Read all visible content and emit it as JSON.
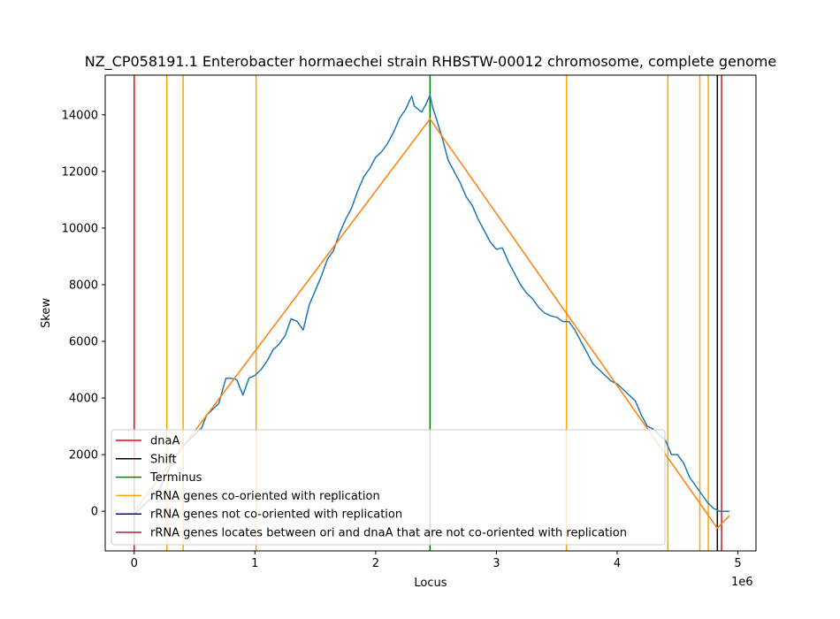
{
  "chart_data": {
    "type": "line",
    "title": "NZ_CP058191.1 Enterobacter hormaechei strain RHBSTW-00012 chromosome, complete genome",
    "xlabel": "Locus",
    "ylabel": "Skew",
    "x_offset_text": "1e6",
    "xlim": [
      -240000,
      5150000
    ],
    "ylim": [
      -1400,
      15400
    ],
    "x_ticks": [
      0,
      1000000,
      2000000,
      3000000,
      4000000,
      5000000
    ],
    "x_tick_labels": [
      "0",
      "1",
      "2",
      "3",
      "4",
      "5"
    ],
    "y_ticks": [
      0,
      2000,
      4000,
      6000,
      8000,
      10000,
      12000,
      14000
    ],
    "y_tick_labels": [
      "0",
      "2000",
      "4000",
      "6000",
      "8000",
      "10000",
      "12000",
      "14000"
    ],
    "grid": false,
    "legend_position": "lower-left",
    "legend": [
      {
        "label": "dnaA",
        "color": "#ff0000"
      },
      {
        "label": "Shift",
        "color": "#000000"
      },
      {
        "label": "Terminus",
        "color": "#008000"
      },
      {
        "label": "rRNA genes co-oriented with replication",
        "color": "#ffa500"
      },
      {
        "label": "rRNA genes not co-oriented with replication",
        "color": "#0000aa"
      },
      {
        "label": "rRNA genes locates between ori and dnaA that are not co-oriented with replication",
        "color": "#b22222"
      }
    ],
    "vertical_lines": [
      {
        "x": 0,
        "color": "#ff0000"
      },
      {
        "x": 270000,
        "color": "#ffa500"
      },
      {
        "x": 405000,
        "color": "#ffa500"
      },
      {
        "x": 1010000,
        "color": "#ffa500"
      },
      {
        "x": 3580000,
        "color": "#ffa500"
      },
      {
        "x": 4420000,
        "color": "#ffa500"
      },
      {
        "x": 4685000,
        "color": "#ffa500"
      },
      {
        "x": 4755000,
        "color": "#ffa500"
      },
      {
        "x": 4830000,
        "color": "#000000"
      },
      {
        "x": 4865000,
        "color": "#b22222"
      },
      {
        "x": 2450000,
        "color": "#008000"
      }
    ],
    "series": [
      {
        "color": "#1f77b4",
        "x": [
          0,
          100000,
          200000,
          300000,
          400000,
          500000,
          560000,
          600000,
          700000,
          760000,
          800000,
          850000,
          900000,
          950000,
          1000000,
          1050000,
          1100000,
          1150000,
          1200000,
          1250000,
          1300000,
          1350000,
          1400000,
          1450000,
          1500000,
          1550000,
          1600000,
          1650000,
          1700000,
          1750000,
          1800000,
          1850000,
          1900000,
          1950000,
          2000000,
          2050000,
          2100000,
          2150000,
          2200000,
          2250000,
          2280000,
          2300000,
          2320000,
          2350000,
          2380000,
          2420000,
          2450000,
          2470000,
          2500000,
          2550000,
          2600000,
          2650000,
          2700000,
          2750000,
          2800000,
          2850000,
          2900000,
          2950000,
          3000000,
          3050000,
          3100000,
          3150000,
          3200000,
          3250000,
          3300000,
          3350000,
          3400000,
          3450000,
          3500000,
          3550000,
          3600000,
          3650000,
          3700000,
          3750000,
          3800000,
          3850000,
          3900000,
          3950000,
          4000000,
          4050000,
          4100000,
          4150000,
          4200000,
          4250000,
          4300000,
          4350000,
          4400000,
          4450000,
          4500000,
          4550000,
          4600000,
          4650000,
          4700000,
          4750000,
          4800000,
          4850000,
          4900000,
          4930000
        ],
        "y": [
          -100,
          300,
          700,
          1600,
          2300,
          2700,
          2950,
          3400,
          3800,
          4700,
          4700,
          4650,
          4100,
          4700,
          4800,
          5000,
          5300,
          5700,
          5900,
          6200,
          6800,
          6700,
          6400,
          7300,
          7800,
          8300,
          8900,
          9200,
          9800,
          10300,
          10700,
          11300,
          11800,
          12100,
          12500,
          12700,
          13000,
          13400,
          13900,
          14200,
          14500,
          14650,
          14300,
          14200,
          14100,
          14400,
          14700,
          14300,
          13900,
          13200,
          12400,
          12000,
          11600,
          11100,
          10800,
          10300,
          9900,
          9500,
          9250,
          9300,
          8800,
          8400,
          8000,
          7700,
          7500,
          7200,
          7000,
          6900,
          6850,
          6700,
          6700,
          6400,
          6000,
          5600,
          5200,
          5000,
          4800,
          4600,
          4500,
          4300,
          4100,
          3900,
          3400,
          3000,
          2900,
          2700,
          2500,
          2000,
          2000,
          1700,
          1200,
          900,
          600,
          300,
          100,
          0,
          0,
          0
        ]
      },
      {
        "color": "#ff7f0e",
        "x": [
          0,
          2450000,
          4830000,
          4930000
        ],
        "y": [
          0,
          13850,
          -600,
          -150
        ]
      }
    ]
  }
}
